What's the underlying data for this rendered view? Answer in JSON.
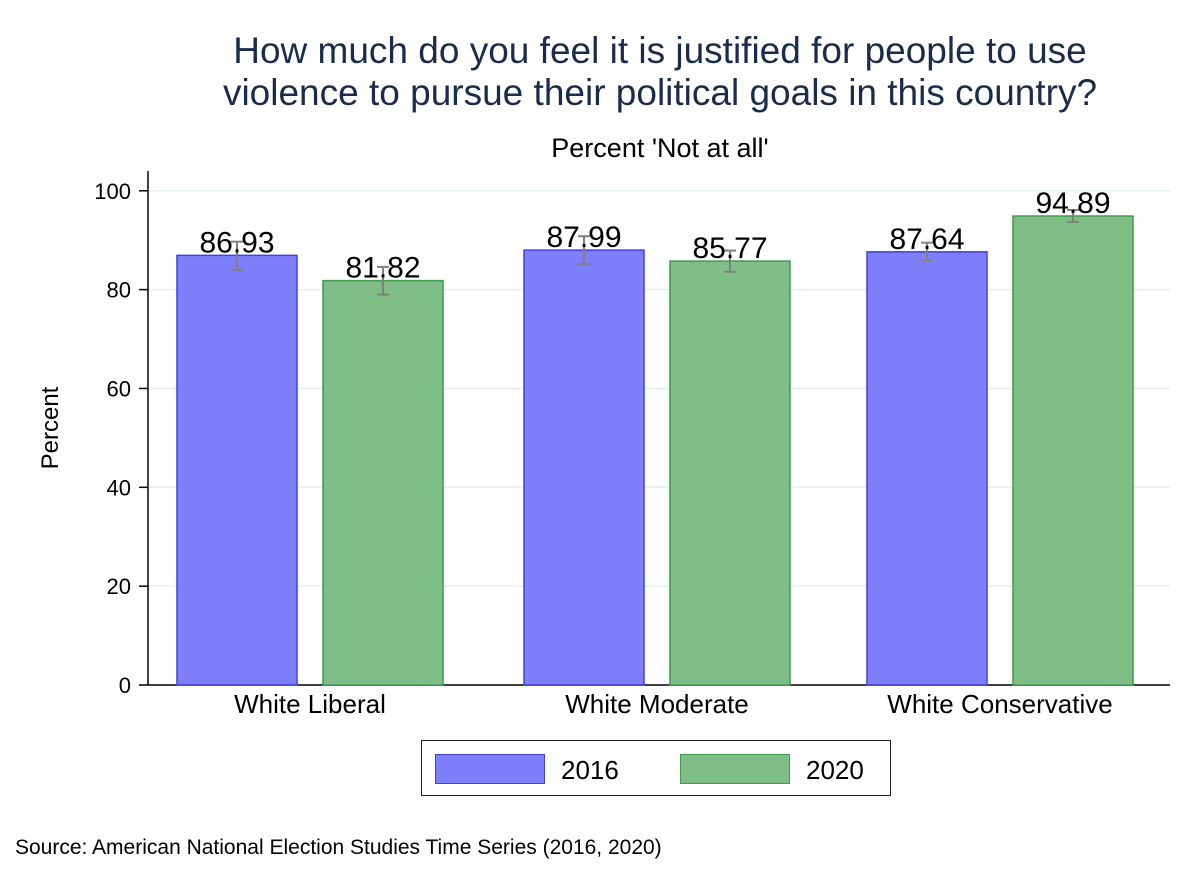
{
  "chart_data": {
    "type": "bar",
    "title_lines": [
      "How much do you feel it is justified for people to use",
      "violence to pursue their political goals in this country?"
    ],
    "subtitle": "Percent 'Not at all'",
    "ylabel": "Percent",
    "xlabel": "",
    "ylim": [
      0,
      100
    ],
    "yticks": [
      0,
      20,
      40,
      60,
      80,
      100
    ],
    "grid": true,
    "legend_position": "bottom",
    "categories": [
      "White Liberal",
      "White Moderate",
      "White Conservative"
    ],
    "series": [
      {
        "name": "2016",
        "color": "#7f7ffb",
        "edge_color": "#4040e0",
        "values": [
          86.93,
          87.99,
          87.64
        ],
        "value_labels": [
          "86.93",
          "87.99",
          "87.64"
        ],
        "ci_low": [
          84.0,
          85.2,
          85.9
        ],
        "ci_high": [
          89.7,
          90.8,
          89.5
        ]
      },
      {
        "name": "2020",
        "color": "#7fbf87",
        "edge_color": "#3f9a4c",
        "values": [
          81.82,
          85.77,
          94.89
        ],
        "value_labels": [
          "81.82",
          "85.77",
          "94.89"
        ],
        "ci_low": [
          79.0,
          83.6,
          93.7
        ],
        "ci_high": [
          84.6,
          87.9,
          96.1
        ]
      }
    ],
    "error_bar_color": "#808080",
    "grid_color": "#e6eef2",
    "source": "Source: American National Election Studies Time Series (2016, 2020)"
  }
}
